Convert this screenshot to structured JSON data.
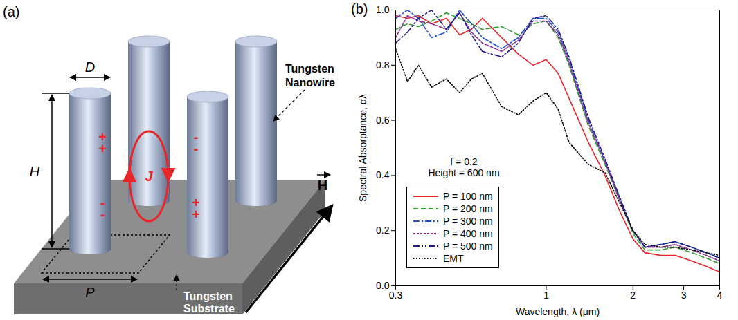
{
  "diagram": {
    "panel_label": "(a)",
    "labels": {
      "diameter": "D",
      "height": "H",
      "period": "P",
      "current": "J",
      "nanowire": "Tungsten Nanowire",
      "substrate": "Tungsten Substrate",
      "field": "H"
    },
    "charges": {
      "positive": "+",
      "negative": "-"
    }
  },
  "chart_data": {
    "type": "line",
    "panel_label": "(b)",
    "x_label": "Wavelength, λ (μm)",
    "y_label": "Spectral Absorptance, αλ",
    "annotations": [
      "f = 0.2",
      "Height = 600 nm"
    ],
    "log": "x",
    "grid": false,
    "legend": "lower left",
    "xlim": [
      0.3,
      4
    ],
    "xticks": [
      0.3,
      1,
      2,
      3,
      4
    ],
    "ylim": [
      0,
      1
    ],
    "yticks": [
      {
        "value": 0,
        "label": "0.0"
      },
      0.2,
      0.4,
      0.6,
      0.8,
      {
        "value": 1,
        "label": "1.0"
      }
    ],
    "x": [
      0.3,
      0.33,
      0.36,
      0.4,
      0.45,
      0.5,
      0.55,
      0.6,
      0.7,
      0.8,
      0.9,
      1.0,
      1.1,
      1.2,
      1.4,
      1.6,
      1.8,
      2.0,
      2.2,
      2.5,
      2.8,
      3.2,
      3.6,
      4.0
    ],
    "series": [
      {
        "name": "P = 100 nm",
        "color": "#e8262a",
        "line_style": "solid",
        "values": [
          0.98,
          0.97,
          0.98,
          0.95,
          0.97,
          0.91,
          0.93,
          0.97,
          0.9,
          0.84,
          0.8,
          0.82,
          0.77,
          0.68,
          0.52,
          0.4,
          0.27,
          0.17,
          0.12,
          0.11,
          0.11,
          0.09,
          0.07,
          0.05
        ]
      },
      {
        "name": "P = 200 nm",
        "color": "#2e9e2e",
        "line_style": "dashed",
        "values": [
          0.93,
          0.95,
          0.94,
          0.96,
          0.99,
          0.97,
          0.95,
          0.93,
          0.94,
          0.91,
          0.95,
          0.96,
          0.9,
          0.8,
          0.58,
          0.44,
          0.31,
          0.19,
          0.13,
          0.13,
          0.14,
          0.12,
          0.1,
          0.08
        ]
      },
      {
        "name": "P = 300 nm",
        "color": "#1f4fd6",
        "line_style": "dashdot",
        "values": [
          0.97,
          1.0,
          0.97,
          0.9,
          0.92,
          1.0,
          0.95,
          0.9,
          0.86,
          0.9,
          0.97,
          0.97,
          0.92,
          0.82,
          0.6,
          0.45,
          0.32,
          0.2,
          0.14,
          0.15,
          0.16,
          0.14,
          0.12,
          0.1
        ]
      },
      {
        "name": "P = 400 nm",
        "color": "#8b2c8b",
        "line_style": "short_dashed",
        "values": [
          0.9,
          0.98,
          0.96,
          0.95,
          0.93,
          0.99,
          0.92,
          0.88,
          0.85,
          0.89,
          0.96,
          0.96,
          0.91,
          0.81,
          0.59,
          0.45,
          0.31,
          0.2,
          0.14,
          0.14,
          0.15,
          0.13,
          0.11,
          0.09
        ]
      },
      {
        "name": "P = 500 nm",
        "color": "#1a1a8c",
        "line_style": "dashdotdot",
        "values": [
          0.88,
          0.92,
          0.97,
          1.0,
          0.93,
          0.99,
          0.91,
          0.85,
          0.83,
          0.88,
          0.97,
          0.98,
          0.93,
          0.83,
          0.61,
          0.46,
          0.32,
          0.2,
          0.14,
          0.15,
          0.16,
          0.14,
          0.12,
          0.1
        ]
      },
      {
        "name": "EMT",
        "color": "#000000",
        "line_style": "dotted",
        "values": [
          0.86,
          0.74,
          0.8,
          0.72,
          0.75,
          0.7,
          0.75,
          0.77,
          0.65,
          0.62,
          0.67,
          0.7,
          0.64,
          0.52,
          0.44,
          0.41,
          0.3,
          0.2,
          0.15,
          0.14,
          0.14,
          0.13,
          0.12,
          0.11
        ]
      }
    ]
  }
}
